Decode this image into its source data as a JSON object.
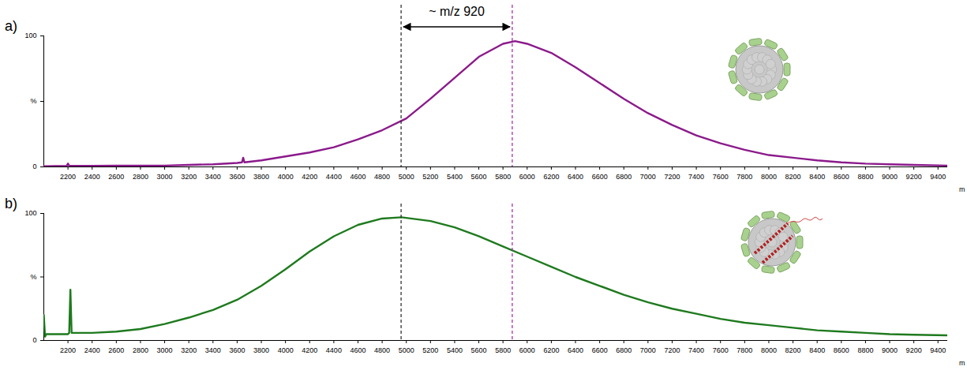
{
  "annotation": {
    "text": "~ m/z 920",
    "from": 4960,
    "to": 5880,
    "lines": [
      {
        "x": 4960,
        "color": "#222222"
      },
      {
        "x": 5880,
        "color": "#a020a0"
      }
    ]
  },
  "chart_data": [
    {
      "type": "line",
      "label": "a)",
      "x_label": "m",
      "color": "#8b1a8b",
      "x": [
        2000,
        2190,
        2200,
        2210,
        2400,
        2600,
        2800,
        3000,
        3200,
        3400,
        3600,
        3640,
        3650,
        3660,
        3800,
        4000,
        4200,
        4400,
        4600,
        4800,
        5000,
        5200,
        5400,
        5600,
        5800,
        5900,
        6000,
        6200,
        6400,
        6600,
        6800,
        7000,
        7200,
        7400,
        7600,
        7800,
        8000,
        8200,
        8400,
        8600,
        8800,
        9000,
        9200,
        9480
      ],
      "values": [
        0.5,
        0.8,
        2.5,
        0.8,
        0.8,
        1,
        1,
        1,
        1.5,
        2,
        3,
        3.5,
        7,
        3.5,
        5,
        8,
        11,
        15,
        21,
        28,
        37,
        52,
        68,
        84,
        94,
        96,
        94,
        87,
        76,
        64,
        52,
        41,
        32,
        24,
        18,
        13,
        9,
        7,
        5,
        3.5,
        2.5,
        2,
        1.5,
        1
      ],
      "xlim": [
        2000,
        9480
      ],
      "xticks": [
        2200,
        2400,
        2600,
        2800,
        3000,
        3200,
        3400,
        3600,
        3800,
        4000,
        4200,
        4400,
        4600,
        4800,
        5000,
        5200,
        5400,
        5600,
        5800,
        6000,
        6200,
        6400,
        6600,
        6800,
        7000,
        7200,
        7400,
        7600,
        7800,
        8000,
        8200,
        8400,
        8600,
        8800,
        9000,
        9200,
        9400
      ],
      "ylim": [
        0,
        100
      ],
      "yticks": [
        0,
        {
          "value": 50,
          "label": "%"
        },
        100
      ]
    },
    {
      "type": "line",
      "label": "b)",
      "x_label": "m",
      "color": "#1e7a1e",
      "x": [
        2000,
        2010,
        2020,
        2200,
        2210,
        2220,
        2230,
        2400,
        2600,
        2800,
        3000,
        3200,
        3400,
        3600,
        3800,
        4000,
        4200,
        4400,
        4600,
        4800,
        4960,
        5200,
        5400,
        5600,
        5800,
        6000,
        6200,
        6400,
        6600,
        6800,
        7000,
        7200,
        7400,
        7600,
        7800,
        8000,
        8200,
        8400,
        8600,
        8800,
        9000,
        9200,
        9480
      ],
      "values": [
        20,
        3,
        5,
        5,
        6,
        40,
        6,
        6,
        7,
        9,
        13,
        18,
        24,
        32,
        43,
        56,
        70,
        82,
        91,
        96,
        97,
        94,
        89,
        82,
        74,
        66,
        58,
        50,
        43,
        36,
        30,
        25,
        21,
        17,
        14,
        12,
        10,
        8,
        7,
        6,
        5,
        4.5,
        4
      ],
      "xlim": [
        2000,
        9480
      ],
      "xticks": [
        2200,
        2400,
        2600,
        2800,
        3000,
        3200,
        3400,
        3600,
        3800,
        4000,
        4200,
        4400,
        4600,
        4800,
        5000,
        5200,
        5400,
        5600,
        5800,
        6000,
        6200,
        6400,
        6600,
        6800,
        7000,
        7200,
        7400,
        7600,
        7800,
        8000,
        8200,
        8400,
        8600,
        8800,
        9000,
        9200,
        9400
      ],
      "ylim": [
        0,
        100
      ],
      "yticks": [
        0,
        {
          "value": 50,
          "label": "%"
        },
        100
      ]
    }
  ]
}
